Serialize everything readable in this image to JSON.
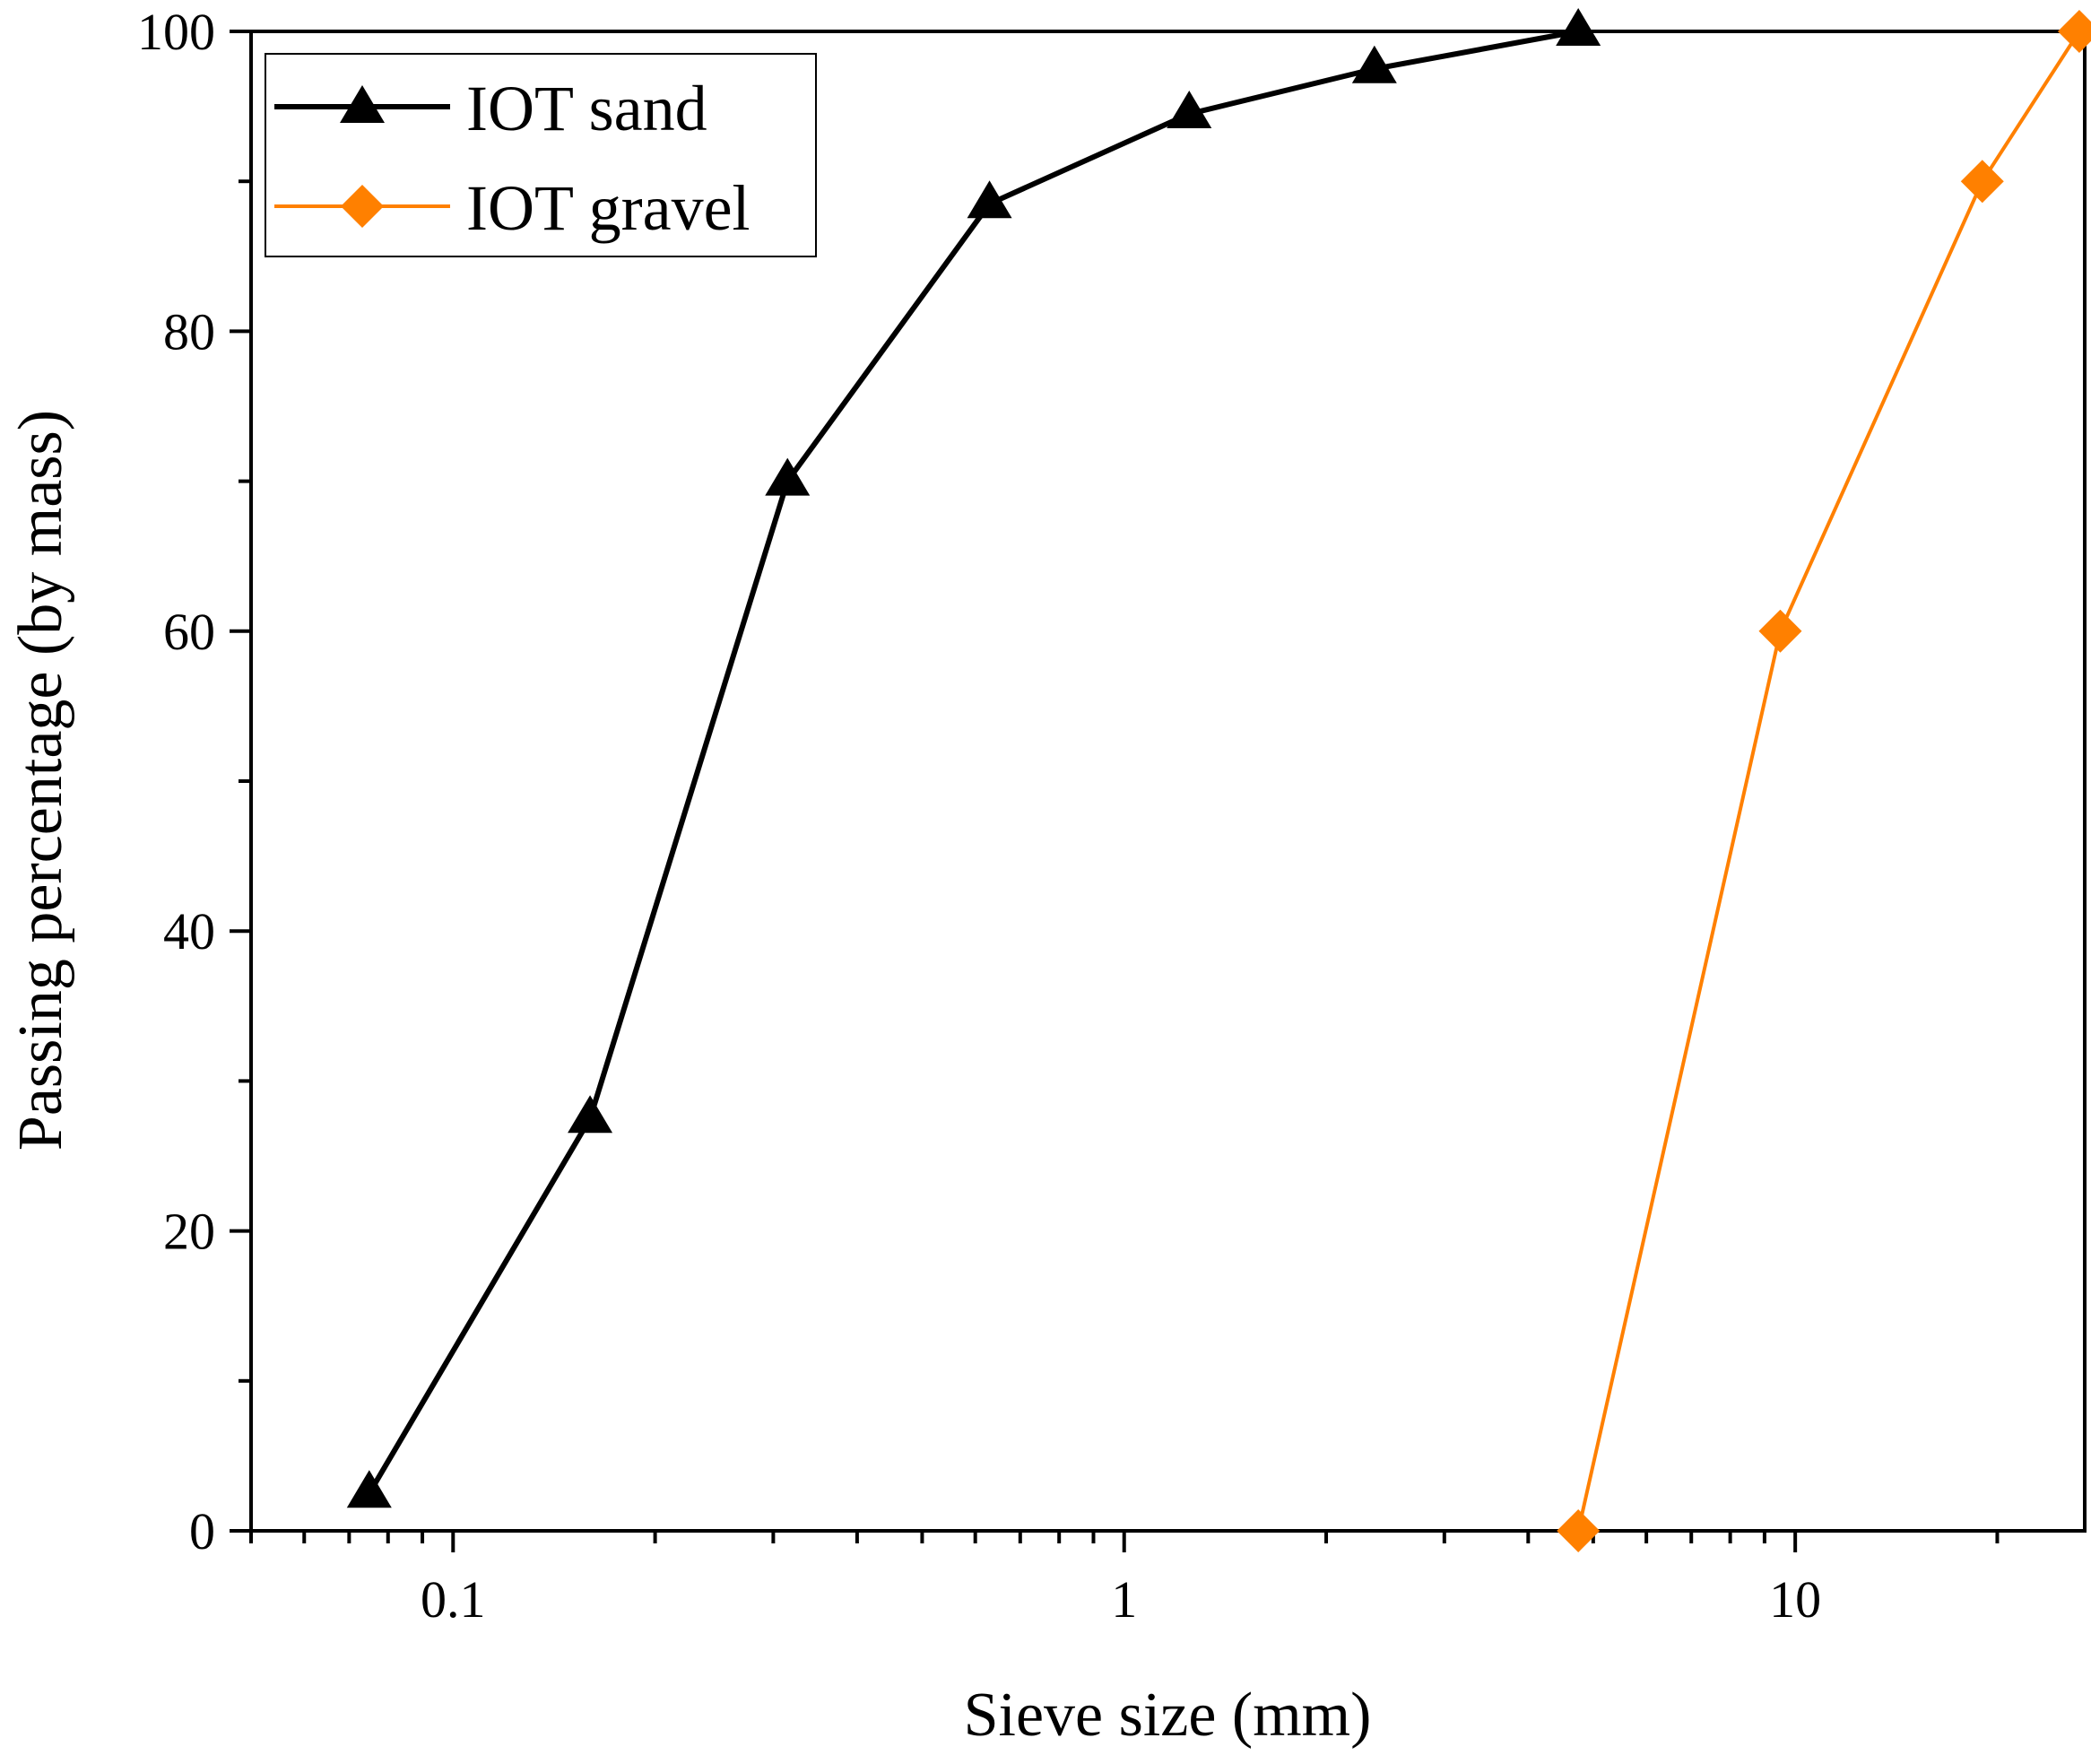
{
  "chart_data": {
    "type": "line",
    "title": "",
    "xlabel": "Sieve size (mm)",
    "ylabel": "Passing percentage (by mass)",
    "xscale": "log",
    "xlim": [
      0.05,
      27
    ],
    "ylim": [
      0,
      100
    ],
    "x_tick_labels": [
      {
        "value": 0.1,
        "label": "0.1"
      },
      {
        "value": 1,
        "label": "1"
      },
      {
        "value": 10,
        "label": "10"
      }
    ],
    "y_ticks": [
      0,
      20,
      40,
      60,
      80,
      100
    ],
    "y_tick_labels": [
      "0",
      "20",
      "40",
      "60",
      "80",
      "100"
    ],
    "legend_position": "top-left",
    "series": [
      {
        "name": "IOT sand",
        "color": "#000000",
        "marker": "triangle",
        "x": [
          0.075,
          0.16,
          0.315,
          0.63,
          1.25,
          2.36,
          4.75
        ],
        "y": [
          2.5,
          27.5,
          70.0,
          88.5,
          94.5,
          97.5,
          100.0
        ]
      },
      {
        "name": "IOT gravel",
        "color": "#ff8000",
        "marker": "diamond",
        "x": [
          4.75,
          9.5,
          19.0,
          26.5
        ],
        "y": [
          0,
          60,
          90,
          100
        ]
      }
    ]
  }
}
